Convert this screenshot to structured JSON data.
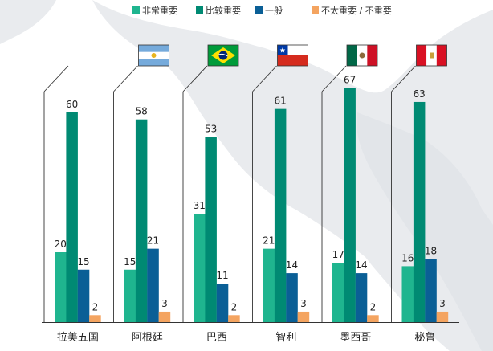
{
  "chart_data": {
    "type": "bar",
    "categories": [
      "拉美五国",
      "阿根廷",
      "巴西",
      "智利",
      "墨西哥",
      "秘鲁"
    ],
    "series": [
      {
        "name": "非常重要",
        "values": [
          20,
          15,
          31,
          21,
          17,
          16
        ],
        "color": "#1fb58f"
      },
      {
        "name": "比较重要",
        "values": [
          60,
          58,
          53,
          61,
          67,
          63
        ],
        "color": "#008a73"
      },
      {
        "name": "一般",
        "values": [
          15,
          21,
          11,
          14,
          14,
          18
        ],
        "color": "#0a5f96"
      },
      {
        "name": "不太重要 / 不重要",
        "values": [
          2,
          3,
          2,
          3,
          2,
          3
        ],
        "color": "#f4a460"
      }
    ],
    "flags": [
      "",
      "argentina-flag",
      "brazil-flag",
      "chile-flag",
      "mexico-flag",
      "peru-flag"
    ],
    "ylim": [
      0,
      70
    ],
    "legend_position": "top",
    "grid": false
  }
}
